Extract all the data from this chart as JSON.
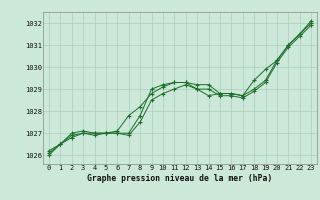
{
  "title": "Graphe pression niveau de la mer (hPa)",
  "background_color": "#cce8d8",
  "grid_color": "#aacebb",
  "line_color": "#1a6e2a",
  "x_min": -0.5,
  "x_max": 23.5,
  "y_min": 1025.6,
  "y_max": 1032.5,
  "yticks": [
    1026,
    1027,
    1028,
    1029,
    1030,
    1031,
    1032
  ],
  "xticks": [
    0,
    1,
    2,
    3,
    4,
    5,
    6,
    7,
    8,
    9,
    10,
    11,
    12,
    13,
    14,
    15,
    16,
    17,
    18,
    19,
    20,
    21,
    22,
    23
  ],
  "series": [
    [
      1026.2,
      1026.5,
      1026.9,
      1027.0,
      1027.0,
      1027.0,
      1027.0,
      1027.0,
      1027.8,
      1029.0,
      1029.2,
      1029.3,
      1029.3,
      1029.2,
      1029.2,
      1028.8,
      1028.8,
      1028.7,
      1029.0,
      1029.4,
      1030.3,
      1031.0,
      1031.5,
      1032.0
    ],
    [
      1026.1,
      1026.5,
      1027.0,
      1027.1,
      1027.0,
      1027.0,
      1027.0,
      1026.9,
      1027.5,
      1028.5,
      1028.8,
      1029.0,
      1029.2,
      1029.0,
      1029.0,
      1028.7,
      1028.7,
      1028.6,
      1028.9,
      1029.3,
      1030.2,
      1030.9,
      1031.4,
      1031.9
    ],
    [
      1026.0,
      1026.5,
      1026.8,
      1027.0,
      1026.9,
      1027.0,
      1027.1,
      1027.8,
      1028.2,
      1028.8,
      1029.1,
      1029.3,
      1029.3,
      1029.0,
      1028.7,
      1028.8,
      1028.8,
      1028.7,
      1029.4,
      1029.9,
      1030.3,
      1031.0,
      1031.5,
      1032.1
    ]
  ],
  "tick_fontsize": 5.0,
  "xlabel_fontsize": 5.8,
  "linewidth": 0.7,
  "markersize": 3.0
}
